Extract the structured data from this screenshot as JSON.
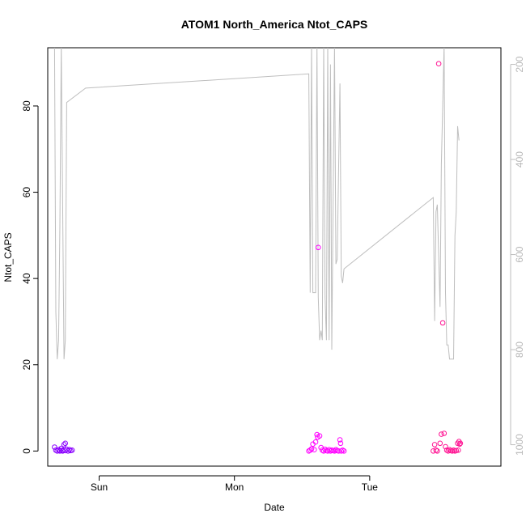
{
  "chart_data": {
    "type": "scatter",
    "title": "ATOM1 North_America Ntot_CAPS",
    "xlabel": "Date",
    "ylabel": "Ntot_CAPS",
    "xlim": [
      -0.38,
      2.97
    ],
    "ylim": [
      -3.5,
      93.5
    ],
    "x_ticks": [
      {
        "value": 0.0,
        "label": "Sun"
      },
      {
        "value": 1.0,
        "label": "Mon"
      },
      {
        "value": 2.0,
        "label": "Tue"
      }
    ],
    "y_ticks": [
      0,
      20,
      40,
      60,
      80
    ],
    "y2": {
      "reversed": true,
      "lim": [
        1045,
        165
      ],
      "ticks": [
        200,
        400,
        600,
        800,
        1000
      ],
      "color": "#bebebe"
    },
    "grid": false,
    "series": [
      {
        "color": "#bebebe",
        "kind": "line",
        "points": [
          [
            -0.33,
            160
          ],
          [
            -0.32,
            720
          ],
          [
            -0.31,
            820
          ],
          [
            -0.3,
            780
          ],
          [
            -0.29,
            540
          ],
          [
            -0.28,
            160
          ],
          [
            -0.26,
            820
          ],
          [
            -0.25,
            780
          ],
          [
            -0.24,
            280
          ],
          [
            -0.1,
            250
          ],
          [
            1.55,
            220
          ],
          [
            1.56,
            680
          ],
          [
            1.57,
            160
          ],
          [
            1.58,
            680
          ],
          [
            1.6,
            680
          ],
          [
            1.61,
            160
          ],
          [
            1.62,
            690
          ],
          [
            1.63,
            780
          ],
          [
            1.64,
            760
          ],
          [
            1.65,
            780
          ],
          [
            1.66,
            160
          ],
          [
            1.67,
            690
          ],
          [
            1.68,
            780
          ],
          [
            1.69,
            160
          ],
          [
            1.7,
            780
          ],
          [
            1.71,
            200
          ],
          [
            1.72,
            800
          ],
          [
            1.74,
            160
          ],
          [
            1.75,
            620
          ],
          [
            1.76,
            610
          ],
          [
            1.78,
            240
          ],
          [
            1.79,
            645
          ],
          [
            1.8,
            660
          ],
          [
            1.81,
            630
          ],
          [
            2.47,
            480
          ],
          [
            2.48,
            740
          ],
          [
            2.49,
            510
          ],
          [
            2.5,
            495
          ],
          [
            2.52,
            710
          ],
          [
            2.53,
            410
          ],
          [
            2.55,
            160
          ],
          [
            2.56,
            680
          ],
          [
            2.57,
            790
          ],
          [
            2.58,
            790
          ],
          [
            2.59,
            820
          ],
          [
            2.6,
            820
          ],
          [
            2.61,
            820
          ],
          [
            2.62,
            820
          ],
          [
            2.63,
            560
          ],
          [
            2.64,
            510
          ],
          [
            2.65,
            330
          ],
          [
            2.66,
            360
          ]
        ]
      },
      {
        "color": "#8a00ff",
        "kind": "points",
        "points": [
          [
            -0.33,
            0.9
          ],
          [
            -0.32,
            0.2
          ],
          [
            -0.31,
            0.0
          ],
          [
            -0.3,
            0.3
          ],
          [
            -0.29,
            0.1
          ],
          [
            -0.28,
            0.6
          ],
          [
            -0.27,
            0.2
          ],
          [
            -0.26,
            1.5
          ],
          [
            -0.25,
            1.8
          ],
          [
            -0.24,
            0.4
          ],
          [
            -0.23,
            0.0
          ],
          [
            -0.22,
            0.3
          ],
          [
            -0.21,
            0.1
          ],
          [
            -0.2,
            0.2
          ],
          [
            -0.29,
            0.0
          ],
          [
            -0.27,
            0.0
          ],
          [
            -0.25,
            0.1
          ]
        ]
      },
      {
        "color": "#ff00ff",
        "kind": "points",
        "points": [
          [
            1.55,
            0.0
          ],
          [
            1.56,
            0.2
          ],
          [
            1.57,
            0.5
          ],
          [
            1.58,
            1.6
          ],
          [
            1.59,
            0.3
          ],
          [
            1.6,
            2.1
          ],
          [
            1.61,
            3.8
          ],
          [
            1.615,
            3.2
          ],
          [
            1.62,
            47.2
          ],
          [
            1.63,
            3.5
          ],
          [
            1.64,
            0.8
          ],
          [
            1.65,
            0.2
          ],
          [
            1.66,
            0.0
          ],
          [
            1.67,
            0.4
          ],
          [
            1.68,
            0.1
          ],
          [
            1.69,
            0.0
          ],
          [
            1.7,
            0.3
          ],
          [
            1.71,
            0.0
          ],
          [
            1.72,
            0.2
          ],
          [
            1.73,
            0.1
          ],
          [
            1.74,
            0.0
          ],
          [
            1.75,
            0.3
          ],
          [
            1.76,
            0.1
          ],
          [
            1.77,
            0.0
          ],
          [
            1.78,
            2.6
          ],
          [
            1.785,
            1.8
          ],
          [
            1.79,
            0.0
          ],
          [
            1.8,
            0.2
          ],
          [
            1.81,
            0.0
          ]
        ]
      },
      {
        "color": "#ff1493",
        "kind": "points",
        "points": [
          [
            2.47,
            0.0
          ],
          [
            2.48,
            1.5
          ],
          [
            2.49,
            0.2
          ],
          [
            2.5,
            0.0
          ],
          [
            2.51,
            89.8
          ],
          [
            2.52,
            1.8
          ],
          [
            2.53,
            3.9
          ],
          [
            2.54,
            29.7
          ],
          [
            2.55,
            4.1
          ],
          [
            2.56,
            1.0
          ],
          [
            2.57,
            0.2
          ],
          [
            2.58,
            0.0
          ],
          [
            2.59,
            0.3
          ],
          [
            2.6,
            0.1
          ],
          [
            2.61,
            0.0
          ],
          [
            2.62,
            0.2
          ],
          [
            2.63,
            0.0
          ],
          [
            2.64,
            0.1
          ],
          [
            2.65,
            1.8
          ],
          [
            2.66,
            2.2
          ],
          [
            2.655,
            0.2
          ],
          [
            2.665,
            1.6
          ],
          [
            2.67,
            1.8
          ]
        ]
      }
    ]
  }
}
